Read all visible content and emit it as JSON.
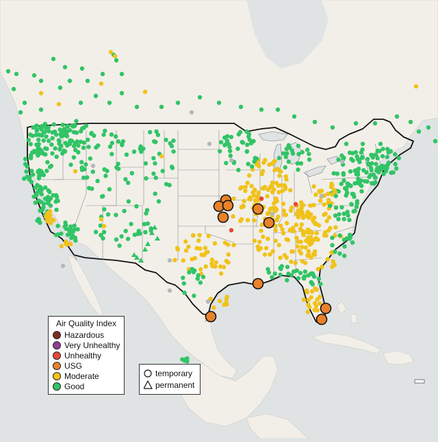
{
  "legend_aqi": {
    "title": "Air Quality Index",
    "items": [
      {
        "label": "Hazardous",
        "color": "#7e2f22"
      },
      {
        "label": "Very Unhealthy",
        "color": "#8f3f97"
      },
      {
        "label": "Unhealthy",
        "color": "#e8463b"
      },
      {
        "label": "USG",
        "color": "#e8822b"
      },
      {
        "label": "Moderate",
        "color": "#f0c21a"
      },
      {
        "label": "Good",
        "color": "#31c466"
      }
    ]
  },
  "legend_type": {
    "items": [
      {
        "label": "temporary",
        "shape": "circle"
      },
      {
        "label": "permanent",
        "shape": "triangle"
      }
    ]
  },
  "colors": {
    "water": "#dfe3e4",
    "land": "#f2efe9",
    "border": "#111111",
    "no_data": "#b8b8b8",
    "Good": "#31c466",
    "Moderate": "#f0c21a",
    "USG": "#e8822b",
    "Unhealthy": "#e8463b",
    "Very Unhealthy": "#8f3f97",
    "Hazardous": "#7e2f22"
  }
}
